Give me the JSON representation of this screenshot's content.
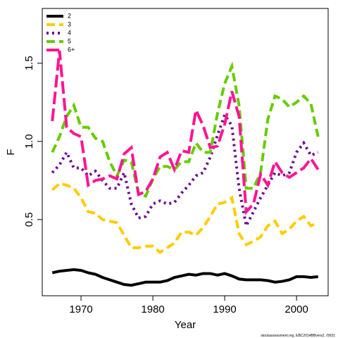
{
  "chart_data": {
    "type": "line",
    "xlabel": "Year",
    "ylabel": "F",
    "footnote": "stockassessment.org, EBC2014BBvers2, r5631",
    "x": [
      1966,
      1967,
      1968,
      1969,
      1970,
      1971,
      1972,
      1973,
      1974,
      1975,
      1976,
      1977,
      1978,
      1979,
      1980,
      1981,
      1982,
      1983,
      1984,
      1985,
      1986,
      1987,
      1988,
      1989,
      1990,
      1991,
      1992,
      1993,
      1994,
      1995,
      1996,
      1997,
      1998,
      1999,
      2000,
      2001,
      2002,
      2003
    ],
    "series": [
      {
        "name": "2",
        "color": "#000000",
        "line_style": "solid",
        "values": [
          0.16,
          0.17,
          0.175,
          0.18,
          0.175,
          0.16,
          0.15,
          0.13,
          0.115,
          0.1,
          0.085,
          0.08,
          0.09,
          0.1,
          0.1,
          0.1,
          0.11,
          0.13,
          0.14,
          0.15,
          0.145,
          0.155,
          0.155,
          0.145,
          0.155,
          0.14,
          0.12,
          0.115,
          0.115,
          0.115,
          0.11,
          0.1,
          0.105,
          0.115,
          0.135,
          0.135,
          0.13,
          0.135
        ]
      },
      {
        "name": "3",
        "color": "#ffcc00",
        "line_style": "dashed",
        "values": [
          0.69,
          0.73,
          0.72,
          0.7,
          0.64,
          0.55,
          0.54,
          0.5,
          0.49,
          0.48,
          0.4,
          0.32,
          0.32,
          0.33,
          0.33,
          0.29,
          0.32,
          0.35,
          0.42,
          0.42,
          0.4,
          0.45,
          0.52,
          0.6,
          0.61,
          0.64,
          0.41,
          0.34,
          0.36,
          0.39,
          0.46,
          0.49,
          0.41,
          0.44,
          0.49,
          0.52,
          0.46,
          0.48
        ]
      },
      {
        "name": "4",
        "color": "#6a0d91",
        "line_style": "dotted",
        "values": [
          0.8,
          0.85,
          0.93,
          0.83,
          0.83,
          0.78,
          0.81,
          0.75,
          0.7,
          0.7,
          0.8,
          0.6,
          0.51,
          0.52,
          0.6,
          0.62,
          0.6,
          0.61,
          0.67,
          0.72,
          0.78,
          0.8,
          0.9,
          1.04,
          1.17,
          1.1,
          0.7,
          0.46,
          0.55,
          0.64,
          0.72,
          0.8,
          0.78,
          0.8,
          0.93,
          0.99,
          0.91,
          0.93
        ]
      },
      {
        "name": "5",
        "color": "#66cc00",
        "line_style": "dashed",
        "values": [
          0.93,
          1.03,
          1.16,
          1.23,
          1.09,
          1.09,
          1.02,
          1.0,
          0.87,
          0.78,
          0.88,
          0.87,
          0.67,
          0.65,
          0.76,
          0.84,
          0.84,
          0.82,
          0.87,
          0.87,
          0.99,
          0.93,
          0.93,
          1.18,
          1.37,
          1.48,
          1.23,
          0.7,
          0.7,
          0.8,
          1.14,
          1.29,
          1.27,
          1.22,
          1.25,
          1.29,
          1.24,
          1.03
        ]
      },
      {
        "name": "6+",
        "color": "#ff1493",
        "line_style": "longdash",
        "values": [
          1.13,
          1.58,
          1.09,
          1.05,
          1.03,
          0.72,
          0.75,
          0.76,
          0.78,
          0.76,
          0.92,
          0.96,
          0.66,
          0.68,
          0.76,
          0.9,
          0.93,
          0.82,
          0.94,
          0.93,
          1.2,
          1.1,
          0.96,
          0.97,
          1.11,
          1.32,
          1.16,
          0.55,
          0.6,
          0.79,
          0.72,
          0.87,
          0.8,
          0.77,
          0.8,
          0.83,
          0.89,
          0.82
        ]
      }
    ],
    "xlim": [
      1964.6,
      2004.4
    ],
    "xticks": [
      1970,
      1980,
      1990,
      2000
    ],
    "ylim": [
      0.013,
      1.85
    ],
    "yticks": [
      0.5,
      {
        "value": 1.0,
        "label": "1.0"
      },
      1.5
    ],
    "legend": "topleft",
    "grid": false
  }
}
